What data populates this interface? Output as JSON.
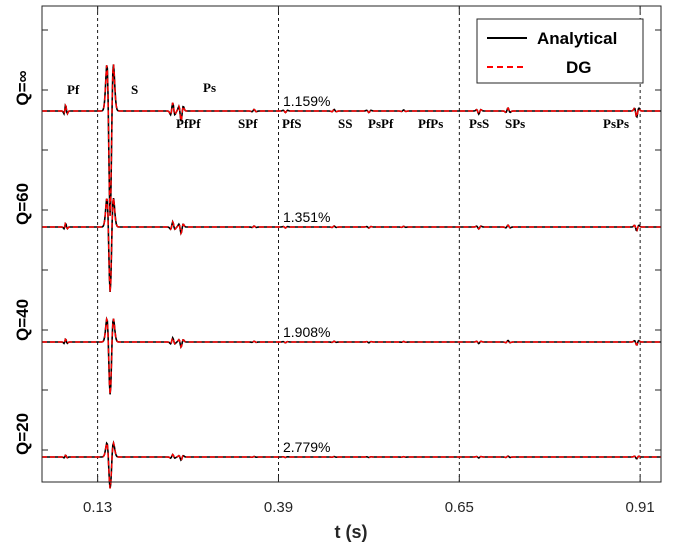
{
  "chart_data": {
    "type": "line",
    "xlabel": "t (s)",
    "xlim": [
      0.05,
      0.94
    ],
    "x_ticks": [
      0.13,
      0.39,
      0.65,
      0.91
    ],
    "vlines": [
      0.13,
      0.39,
      0.65,
      0.91
    ],
    "grid": false,
    "legend_position": "top-right",
    "legend": [
      {
        "label": "Analytical",
        "color": "#000000",
        "style": "solid"
      },
      {
        "label": "DG",
        "color": "#ff0000",
        "style": "dashed"
      }
    ],
    "rows": [
      {
        "label": "Q=∞",
        "misfit": "1.159%",
        "amplitude": 1.0
      },
      {
        "label": "Q=60",
        "misfit": "1.351%",
        "amplitude": 0.62
      },
      {
        "label": "Q=40",
        "misfit": "1.908%",
        "amplitude": 0.5
      },
      {
        "label": "Q=20",
        "misfit": "2.779%",
        "amplitude": 0.3
      }
    ],
    "phases": [
      {
        "label": "Pf",
        "t": 0.084,
        "amp": 0.06
      },
      {
        "label": "S",
        "t": 0.148,
        "amp": 1.0
      },
      {
        "label": "PfPf",
        "t": 0.238,
        "amp": 0.08
      },
      {
        "label": "Ps",
        "t": 0.25,
        "amp": 0.1
      },
      {
        "label": "SPf",
        "t": 0.355,
        "amp": 0.015
      },
      {
        "label": "PfS",
        "t": 0.4,
        "amp": 0.015
      },
      {
        "label": "SS",
        "t": 0.47,
        "amp": 0.015
      },
      {
        "label": "PsPf",
        "t": 0.52,
        "amp": 0.015
      },
      {
        "label": "PfPs",
        "t": 0.57,
        "amp": 0.01
      },
      {
        "label": "PsS",
        "t": 0.678,
        "amp": 0.03
      },
      {
        "label": "SPs",
        "t": 0.72,
        "amp": 0.03
      },
      {
        "label": "PsPs",
        "t": 0.905,
        "amp": 0.06
      }
    ]
  }
}
